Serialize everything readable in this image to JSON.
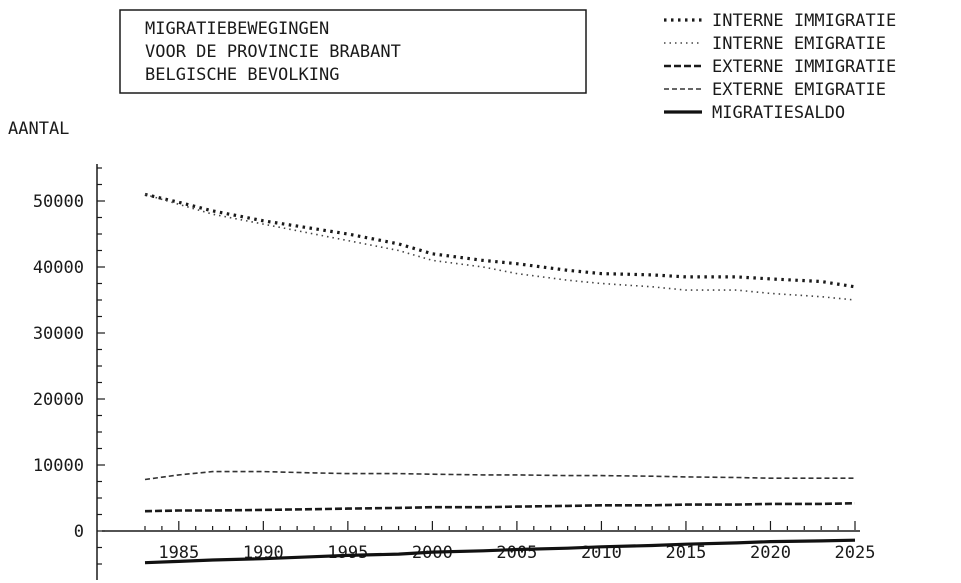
{
  "chart_data": {
    "type": "line",
    "title": [
      "MIGRATIEBEWEGINGEN",
      "VOOR DE PROVINCIE BRABANT",
      "BELGISCHE BEVOLKING"
    ],
    "ylabel": "AANTAL",
    "xlabel": "",
    "xlim": [
      1983,
      2025
    ],
    "ylim": [
      -5000,
      55000
    ],
    "xticks": [
      1985,
      1990,
      1995,
      2000,
      2005,
      2010,
      2015,
      2020,
      2025
    ],
    "yticks": [
      0,
      10000,
      20000,
      30000,
      40000,
      50000
    ],
    "legend_position": "top-right",
    "x": [
      1983,
      1985,
      1987,
      1990,
      1993,
      1995,
      1998,
      2000,
      2003,
      2005,
      2008,
      2010,
      2013,
      2015,
      2018,
      2020,
      2023,
      2025
    ],
    "series": [
      {
        "name": "INTERNE IMMIGRATIE",
        "style": "dotted-heavy",
        "values": [
          51000,
          49800,
          48500,
          47000,
          45800,
          45000,
          43500,
          42000,
          41000,
          40500,
          39500,
          39000,
          38800,
          38500,
          38500,
          38200,
          37800,
          37000
        ]
      },
      {
        "name": "INTERNE EMIGRATIE",
        "style": "dotted-light",
        "values": [
          51000,
          49500,
          48000,
          46500,
          45000,
          44000,
          42500,
          41000,
          40000,
          39000,
          38000,
          37500,
          37000,
          36500,
          36500,
          36000,
          35500,
          35000
        ]
      },
      {
        "name": "EXTERNE IMMIGRATIE",
        "style": "dashed-heavy",
        "values": [
          3000,
          3100,
          3100,
          3200,
          3300,
          3400,
          3500,
          3600,
          3600,
          3700,
          3800,
          3900,
          3900,
          4000,
          4000,
          4100,
          4100,
          4200
        ]
      },
      {
        "name": "EXTERNE EMIGRATIE",
        "style": "dashed-light",
        "values": [
          7800,
          8500,
          9000,
          9000,
          8800,
          8700,
          8700,
          8600,
          8500,
          8500,
          8400,
          8400,
          8300,
          8200,
          8100,
          8000,
          8000,
          8000
        ]
      },
      {
        "name": "MIGRATIESALDO",
        "style": "solid",
        "values": [
          -4800,
          -4600,
          -4400,
          -4200,
          -3900,
          -3700,
          -3500,
          -3200,
          -3000,
          -2800,
          -2600,
          -2400,
          -2200,
          -2000,
          -1800,
          -1600,
          -1500,
          -1400
        ]
      }
    ]
  }
}
